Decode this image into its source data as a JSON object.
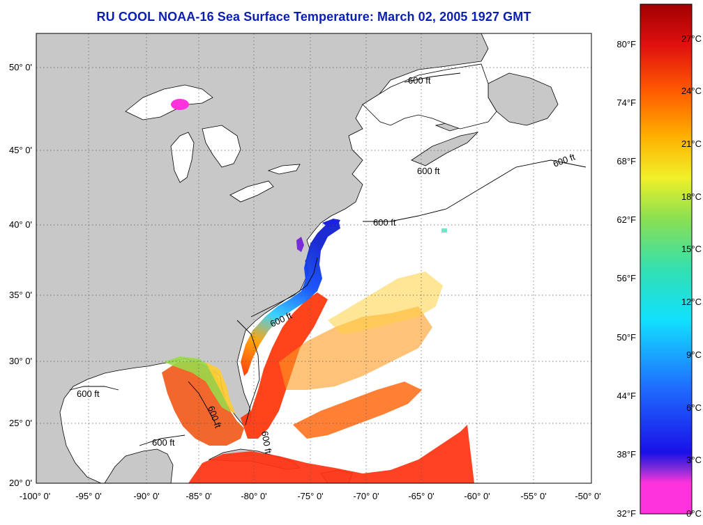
{
  "title": "RU COOL  NOAA-16  Sea Surface Temperature:  March 02, 2005 1927 GMT",
  "map": {
    "lon_labels": [
      "-100° 0'",
      "-95° 0'",
      "-90° 0'",
      "-85° 0'",
      "-80° 0'",
      "-75° 0'",
      "-70° 0'",
      "-65° 0'",
      "-60° 0'",
      "-55° 0'",
      "-50° 0'"
    ],
    "lat_labels": [
      "50° 0'",
      "45° 0'",
      "40° 0'",
      "35° 0'",
      "30° 0'",
      "25° 0'",
      "20° 0'"
    ],
    "contour_labels": [
      "600 ft",
      "600 ft",
      "600 ft",
      "600 ft",
      "600 ft",
      "600 ft",
      "600 ft",
      "600 ft",
      "600 ft"
    ],
    "colors": {
      "land": "#c8c8c8",
      "ocean_no_data": "#ffffff",
      "grid": "#555555"
    }
  },
  "colorbar": {
    "fahrenheit_labels": [
      "80°F",
      "74°F",
      "68°F",
      "62°F",
      "56°F",
      "50°F",
      "44°F",
      "38°F",
      "32°F"
    ],
    "celsius_labels": [
      "27°C",
      "24°C",
      "21°C",
      "18°C",
      "15°C",
      "12°C",
      "9°C",
      "6°C",
      "3°C",
      "0°C"
    ],
    "gradient": [
      "#ff33dd",
      "#7d2bd8",
      "#1a10e8",
      "#1f6fff",
      "#12c8e8",
      "#33e0b0",
      "#8ce050",
      "#f0f028",
      "#ffb000",
      "#ff5a00",
      "#e01010",
      "#a00000"
    ]
  }
}
